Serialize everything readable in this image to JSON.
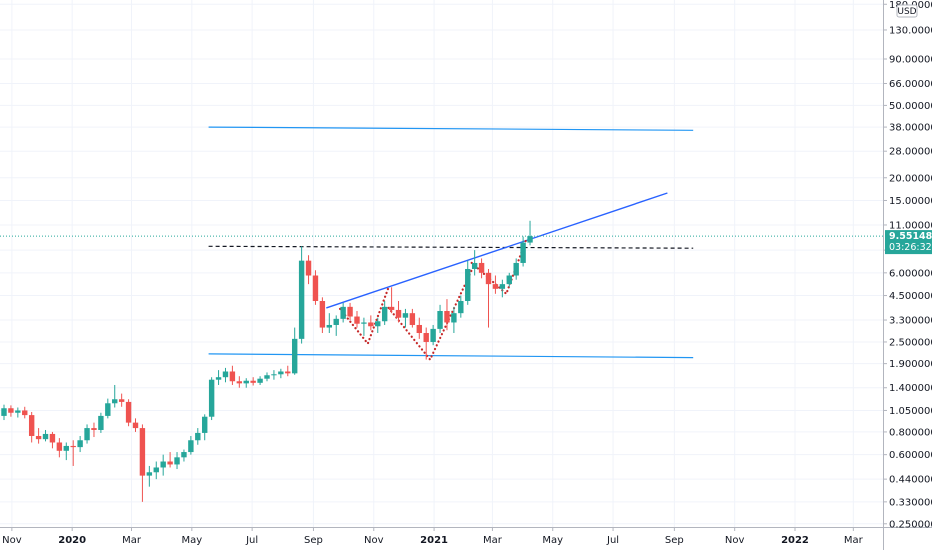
{
  "chart_data": {
    "type": "candlestick",
    "title": "",
    "xlabel": "",
    "ylabel": "",
    "currency_label": "USD",
    "y_scale": "log",
    "ylim": [
      0.24,
      190
    ],
    "xlim": [
      "2019-10-20",
      "2022-03-31"
    ],
    "grid": true,
    "legend": "none",
    "colors": {
      "up": "#26a69a",
      "down": "#ef5350",
      "trendline": "#2962ff",
      "channel": "#2196f3",
      "pattern": "#c62828",
      "last_price_bg": "#26a69a"
    },
    "y_ticks": [
      "180.000000",
      "130.000000",
      "90.000000",
      "66.000000",
      "50.000000",
      "38.000000",
      "28.000000",
      "20.000000",
      "15.000000",
      "11.000000",
      "8.000000",
      "6.000000",
      "4.500000",
      "3.300000",
      "2.500000",
      "1.900000",
      "1.400000",
      "1.050000",
      "0.800000",
      "0.600000",
      "0.440000",
      "0.330000",
      "0.250000"
    ],
    "x_ticks": [
      {
        "date": "2019-11-01",
        "label": "Nov",
        "bold": false
      },
      {
        "date": "2020-01-01",
        "label": "2020",
        "bold": true
      },
      {
        "date": "2020-03-01",
        "label": "Mar",
        "bold": false
      },
      {
        "date": "2020-05-01",
        "label": "May",
        "bold": false
      },
      {
        "date": "2020-07-01",
        "label": "Jul",
        "bold": false
      },
      {
        "date": "2020-09-01",
        "label": "Sep",
        "bold": false
      },
      {
        "date": "2020-11-01",
        "label": "Nov",
        "bold": false
      },
      {
        "date": "2021-01-01",
        "label": "2021",
        "bold": true
      },
      {
        "date": "2021-03-01",
        "label": "Mar",
        "bold": false
      },
      {
        "date": "2021-05-01",
        "label": "May",
        "bold": false
      },
      {
        "date": "2021-07-01",
        "label": "Jul",
        "bold": false
      },
      {
        "date": "2021-09-01",
        "label": "Sep",
        "bold": false
      },
      {
        "date": "2021-11-01",
        "label": "Nov",
        "bold": false
      },
      {
        "date": "2022-01-01",
        "label": "2022",
        "bold": true
      },
      {
        "date": "2022-03-01",
        "label": "Mar",
        "bold": false
      }
    ],
    "candles": [
      {
        "date": "2019-10-21",
        "o": 0.98,
        "h": 1.13,
        "l": 0.93,
        "c": 1.08
      },
      {
        "date": "2019-10-28",
        "o": 1.08,
        "h": 1.12,
        "l": 0.97,
        "c": 1.02
      },
      {
        "date": "2019-11-04",
        "o": 1.02,
        "h": 1.09,
        "l": 0.96,
        "c": 1.05
      },
      {
        "date": "2019-11-11",
        "o": 1.05,
        "h": 1.1,
        "l": 0.95,
        "c": 0.99
      },
      {
        "date": "2019-11-18",
        "o": 0.99,
        "h": 1.03,
        "l": 0.7,
        "c": 0.76
      },
      {
        "date": "2019-11-25",
        "o": 0.76,
        "h": 0.84,
        "l": 0.69,
        "c": 0.73
      },
      {
        "date": "2019-12-02",
        "o": 0.73,
        "h": 0.82,
        "l": 0.71,
        "c": 0.78
      },
      {
        "date": "2019-12-09",
        "o": 0.78,
        "h": 0.8,
        "l": 0.65,
        "c": 0.7
      },
      {
        "date": "2019-12-16",
        "o": 0.7,
        "h": 0.74,
        "l": 0.58,
        "c": 0.63
      },
      {
        "date": "2019-12-23",
        "o": 0.63,
        "h": 0.7,
        "l": 0.56,
        "c": 0.67
      },
      {
        "date": "2019-12-30",
        "o": 0.67,
        "h": 0.72,
        "l": 0.52,
        "c": 0.66
      },
      {
        "date": "2020-01-06",
        "o": 0.66,
        "h": 0.76,
        "l": 0.62,
        "c": 0.72
      },
      {
        "date": "2020-01-13",
        "o": 0.72,
        "h": 0.88,
        "l": 0.69,
        "c": 0.84
      },
      {
        "date": "2020-01-20",
        "o": 0.84,
        "h": 0.9,
        "l": 0.75,
        "c": 0.82
      },
      {
        "date": "2020-01-27",
        "o": 0.82,
        "h": 1.02,
        "l": 0.79,
        "c": 0.98
      },
      {
        "date": "2020-02-03",
        "o": 0.98,
        "h": 1.22,
        "l": 0.95,
        "c": 1.15
      },
      {
        "date": "2020-02-10",
        "o": 1.15,
        "h": 1.45,
        "l": 1.09,
        "c": 1.21
      },
      {
        "date": "2020-02-17",
        "o": 1.21,
        "h": 1.3,
        "l": 1.1,
        "c": 1.17
      },
      {
        "date": "2020-02-24",
        "o": 1.17,
        "h": 1.21,
        "l": 0.86,
        "c": 0.9
      },
      {
        "date": "2020-03-02",
        "o": 0.9,
        "h": 0.95,
        "l": 0.8,
        "c": 0.84
      },
      {
        "date": "2020-03-09",
        "o": 0.84,
        "h": 0.88,
        "l": 0.33,
        "c": 0.46
      },
      {
        "date": "2020-03-16",
        "o": 0.46,
        "h": 0.52,
        "l": 0.4,
        "c": 0.48
      },
      {
        "date": "2020-03-23",
        "o": 0.48,
        "h": 0.55,
        "l": 0.44,
        "c": 0.51
      },
      {
        "date": "2020-03-30",
        "o": 0.51,
        "h": 0.6,
        "l": 0.46,
        "c": 0.55
      },
      {
        "date": "2020-04-06",
        "o": 0.55,
        "h": 0.62,
        "l": 0.51,
        "c": 0.53
      },
      {
        "date": "2020-04-13",
        "o": 0.53,
        "h": 0.62,
        "l": 0.5,
        "c": 0.58
      },
      {
        "date": "2020-04-20",
        "o": 0.58,
        "h": 0.64,
        "l": 0.55,
        "c": 0.62
      },
      {
        "date": "2020-04-27",
        "o": 0.62,
        "h": 0.76,
        "l": 0.6,
        "c": 0.72
      },
      {
        "date": "2020-05-04",
        "o": 0.72,
        "h": 0.84,
        "l": 0.68,
        "c": 0.79
      },
      {
        "date": "2020-05-11",
        "o": 0.79,
        "h": 1.0,
        "l": 0.72,
        "c": 0.97
      },
      {
        "date": "2020-05-18",
        "o": 0.97,
        "h": 1.6,
        "l": 0.93,
        "c": 1.55
      },
      {
        "date": "2020-05-25",
        "o": 1.55,
        "h": 1.75,
        "l": 1.45,
        "c": 1.6
      },
      {
        "date": "2020-06-01",
        "o": 1.6,
        "h": 1.8,
        "l": 1.5,
        "c": 1.72
      },
      {
        "date": "2020-06-08",
        "o": 1.72,
        "h": 1.85,
        "l": 1.45,
        "c": 1.52
      },
      {
        "date": "2020-06-15",
        "o": 1.52,
        "h": 1.62,
        "l": 1.4,
        "c": 1.48
      },
      {
        "date": "2020-06-22",
        "o": 1.48,
        "h": 1.58,
        "l": 1.4,
        "c": 1.53
      },
      {
        "date": "2020-06-29",
        "o": 1.53,
        "h": 1.6,
        "l": 1.44,
        "c": 1.49
      },
      {
        "date": "2020-07-06",
        "o": 1.49,
        "h": 1.62,
        "l": 1.45,
        "c": 1.57
      },
      {
        "date": "2020-07-13",
        "o": 1.57,
        "h": 1.7,
        "l": 1.52,
        "c": 1.64
      },
      {
        "date": "2020-07-20",
        "o": 1.64,
        "h": 1.75,
        "l": 1.55,
        "c": 1.66
      },
      {
        "date": "2020-07-27",
        "o": 1.66,
        "h": 1.78,
        "l": 1.58,
        "c": 1.72
      },
      {
        "date": "2020-08-03",
        "o": 1.72,
        "h": 1.85,
        "l": 1.62,
        "c": 1.68
      },
      {
        "date": "2020-08-10",
        "o": 1.68,
        "h": 3.0,
        "l": 1.65,
        "c": 2.6
      },
      {
        "date": "2020-08-17",
        "o": 2.6,
        "h": 8.4,
        "l": 2.45,
        "c": 7.0
      },
      {
        "date": "2020-08-24",
        "o": 7.0,
        "h": 7.5,
        "l": 5.2,
        "c": 5.8
      },
      {
        "date": "2020-08-31",
        "o": 5.8,
        "h": 6.2,
        "l": 4.0,
        "c": 4.2
      },
      {
        "date": "2020-09-07",
        "o": 4.2,
        "h": 4.4,
        "l": 2.8,
        "c": 3.0
      },
      {
        "date": "2020-09-14",
        "o": 3.0,
        "h": 3.6,
        "l": 2.8,
        "c": 3.1
      },
      {
        "date": "2020-09-21",
        "o": 3.1,
        "h": 3.5,
        "l": 2.7,
        "c": 3.35
      },
      {
        "date": "2020-09-28",
        "o": 3.35,
        "h": 4.1,
        "l": 3.2,
        "c": 3.9
      },
      {
        "date": "2020-10-05",
        "o": 3.9,
        "h": 4.1,
        "l": 3.3,
        "c": 3.45
      },
      {
        "date": "2020-10-12",
        "o": 3.45,
        "h": 3.7,
        "l": 3.0,
        "c": 3.15
      },
      {
        "date": "2020-10-19",
        "o": 3.15,
        "h": 3.4,
        "l": 2.7,
        "c": 3.2
      },
      {
        "date": "2020-10-26",
        "o": 3.2,
        "h": 3.5,
        "l": 2.9,
        "c": 3.05
      },
      {
        "date": "2020-11-02",
        "o": 3.05,
        "h": 3.4,
        "l": 2.8,
        "c": 3.25
      },
      {
        "date": "2020-11-09",
        "o": 3.25,
        "h": 4.2,
        "l": 3.1,
        "c": 3.9
      },
      {
        "date": "2020-11-16",
        "o": 3.9,
        "h": 5.0,
        "l": 3.6,
        "c": 3.75
      },
      {
        "date": "2020-11-23",
        "o": 3.75,
        "h": 4.2,
        "l": 3.2,
        "c": 3.4
      },
      {
        "date": "2020-11-30",
        "o": 3.4,
        "h": 3.8,
        "l": 3.0,
        "c": 3.6
      },
      {
        "date": "2020-12-07",
        "o": 3.6,
        "h": 3.8,
        "l": 3.0,
        "c": 3.1
      },
      {
        "date": "2020-12-14",
        "o": 3.1,
        "h": 3.4,
        "l": 2.6,
        "c": 2.8
      },
      {
        "date": "2020-12-21",
        "o": 2.8,
        "h": 3.0,
        "l": 2.0,
        "c": 2.5
      },
      {
        "date": "2020-12-28",
        "o": 2.5,
        "h": 3.1,
        "l": 2.4,
        "c": 2.95
      },
      {
        "date": "2021-01-04",
        "o": 2.95,
        "h": 4.0,
        "l": 2.8,
        "c": 3.7
      },
      {
        "date": "2021-01-11",
        "o": 3.7,
        "h": 4.3,
        "l": 2.9,
        "c": 3.2
      },
      {
        "date": "2021-01-18",
        "o": 3.2,
        "h": 3.9,
        "l": 2.8,
        "c": 3.6
      },
      {
        "date": "2021-01-25",
        "o": 3.6,
        "h": 4.5,
        "l": 3.4,
        "c": 4.2
      },
      {
        "date": "2021-02-01",
        "o": 4.2,
        "h": 7.0,
        "l": 4.0,
        "c": 6.3
      },
      {
        "date": "2021-02-08",
        "o": 6.3,
        "h": 8.0,
        "l": 5.8,
        "c": 6.8
      },
      {
        "date": "2021-02-15",
        "o": 6.8,
        "h": 7.2,
        "l": 5.6,
        "c": 6.0
      },
      {
        "date": "2021-02-22",
        "o": 6.0,
        "h": 6.3,
        "l": 3.0,
        "c": 5.2
      },
      {
        "date": "2021-03-01",
        "o": 5.2,
        "h": 5.8,
        "l": 4.6,
        "c": 4.9
      },
      {
        "date": "2021-03-08",
        "o": 4.9,
        "h": 5.5,
        "l": 4.4,
        "c": 5.2
      },
      {
        "date": "2021-03-15",
        "o": 5.2,
        "h": 6.0,
        "l": 5.0,
        "c": 5.8
      },
      {
        "date": "2021-03-22",
        "o": 5.8,
        "h": 7.2,
        "l": 5.5,
        "c": 6.8
      },
      {
        "date": "2021-03-29",
        "o": 6.8,
        "h": 9.5,
        "l": 6.5,
        "c": 8.8
      },
      {
        "date": "2021-04-05",
        "o": 8.8,
        "h": 11.6,
        "l": 8.5,
        "c": 9.551481
      }
    ],
    "drawings": [
      {
        "name": "upper-horizontal-line",
        "kind": "line",
        "color": "#2196f3",
        "dash": false,
        "points": [
          [
            "2020-05-18",
            38.0
          ],
          [
            "2021-09-20",
            36.5
          ]
        ]
      },
      {
        "name": "lower-horizontal-line",
        "kind": "line",
        "color": "#2196f3",
        "dash": false,
        "points": [
          [
            "2020-05-18",
            2.15
          ],
          [
            "2021-09-20",
            2.05
          ]
        ]
      },
      {
        "name": "resistance-dashed-line",
        "kind": "line",
        "color": "#131722",
        "dash": true,
        "points": [
          [
            "2020-05-18",
            8.4
          ],
          [
            "2021-09-20",
            8.2
          ]
        ]
      },
      {
        "name": "rising-trendline",
        "kind": "line",
        "color": "#2962ff",
        "dash": false,
        "points": [
          [
            "2020-09-14",
            3.85
          ],
          [
            "2021-08-25",
            16.5
          ]
        ]
      },
      {
        "name": "pattern-dots-left",
        "kind": "dotted",
        "color": "#c62828",
        "points": [
          [
            "2020-09-28",
            3.8
          ],
          [
            "2020-10-26",
            2.45
          ],
          [
            "2020-11-16",
            5.0
          ]
        ]
      },
      {
        "name": "pattern-dots-middle",
        "kind": "dotted",
        "color": "#c62828",
        "points": [
          [
            "2020-11-16",
            3.85
          ],
          [
            "2020-12-28",
            2.0
          ],
          [
            "2021-02-08",
            6.2
          ]
        ]
      },
      {
        "name": "pattern-dots-right",
        "kind": "dotted",
        "color": "#c62828",
        "points": [
          [
            "2021-02-08",
            6.8
          ],
          [
            "2021-03-15",
            4.6
          ],
          [
            "2021-04-05",
            9.4
          ]
        ]
      }
    ],
    "last_price_label": "9.551481",
    "countdown_label": "03:26:32"
  }
}
